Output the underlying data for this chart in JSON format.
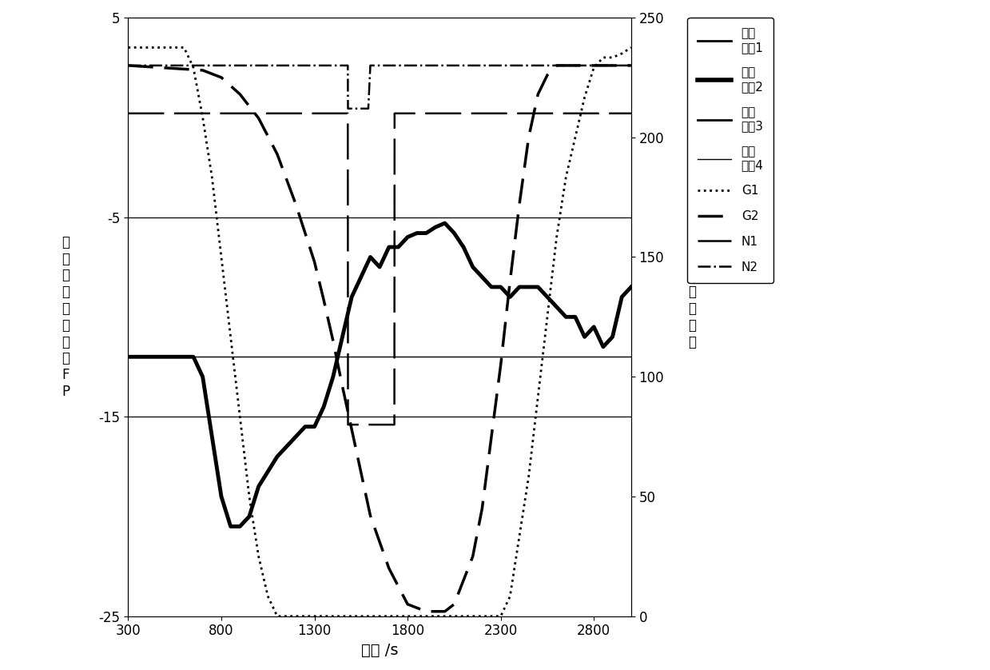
{
  "xlim": [
    300,
    3000
  ],
  "ylim_left": [
    -25,
    5
  ],
  "ylim_right": [
    0,
    250
  ],
  "xlabel": "时间 /s",
  "xticks": [
    300,
    800,
    1300,
    1800,
    2300,
    2800
  ],
  "yticks_left": [
    5,
    -5,
    -15,
    -25
  ],
  "yticks_right": [
    0,
    50,
    100,
    150,
    200,
    250
  ],
  "background_color": "#ffffff",
  "axial_dev2_t": [
    300,
    650,
    700,
    750,
    800,
    850,
    900,
    950,
    1000,
    1100,
    1200,
    1250,
    1300,
    1350,
    1400,
    1450,
    1500,
    1550,
    1600,
    1650,
    1700,
    1750,
    1800,
    1850,
    1900,
    1950,
    2000,
    2050,
    2100,
    2150,
    2200,
    2250,
    2300,
    2350,
    2400,
    2450,
    2500,
    2550,
    2600,
    2650,
    2700,
    2750,
    2800,
    2850,
    2900,
    2950,
    3000
  ],
  "axial_dev2_v": [
    -12,
    -12,
    -13,
    -16,
    -19,
    -20.5,
    -20.5,
    -20,
    -18.5,
    -17,
    -16,
    -15.5,
    -15.5,
    -14.5,
    -13,
    -11,
    -9,
    -8,
    -7,
    -7.5,
    -6.5,
    -6.5,
    -6,
    -5.8,
    -5.8,
    -5.5,
    -5.3,
    -5.8,
    -6.5,
    -7.5,
    -8,
    -8.5,
    -8.5,
    -9,
    -8.5,
    -8.5,
    -8.5,
    -9,
    -9.5,
    -10,
    -10,
    -11,
    -10.5,
    -11.5,
    -11,
    -9,
    -8.5
  ],
  "G1_t": [
    300,
    600,
    650,
    700,
    750,
    800,
    850,
    900,
    950,
    1000,
    1050,
    1100,
    1300,
    2300,
    2350,
    2400,
    2450,
    2500,
    2550,
    2600,
    2650,
    2700,
    2750,
    2800,
    2850,
    2900,
    2950,
    3000
  ],
  "G1_v": [
    3.5,
    3.5,
    2.5,
    0,
    -3,
    -7,
    -11,
    -15,
    -19,
    -22,
    -24,
    -25,
    -25,
    -25,
    -24,
    -21,
    -18,
    -14,
    -10,
    -6,
    -3,
    -1,
    1,
    2.5,
    3.0,
    3.0,
    3.2,
    3.5
  ],
  "G2_t": [
    300,
    700,
    800,
    900,
    1000,
    1100,
    1200,
    1300,
    1350,
    1400,
    1450,
    1500,
    1550,
    1600,
    1700,
    1800,
    1900,
    2000,
    2050,
    2100,
    2150,
    2200,
    2250,
    2300,
    2350,
    2400,
    2450,
    2500,
    2550,
    2600,
    3000
  ],
  "G2_v": [
    230,
    228,
    225,
    218,
    208,
    193,
    172,
    148,
    132,
    115,
    96,
    78,
    60,
    42,
    20,
    5,
    2,
    2,
    5,
    15,
    25,
    45,
    75,
    105,
    140,
    172,
    200,
    218,
    226,
    230,
    230
  ],
  "N1_t": [
    300,
    1479,
    1480,
    1729,
    1730,
    3000
  ],
  "N1_v": [
    210,
    210,
    80,
    80,
    210,
    210
  ],
  "N2_t": [
    300,
    1479,
    1480,
    1589,
    1600,
    1729,
    1730,
    3000
  ],
  "N2_v": [
    230,
    230,
    212,
    212,
    230,
    230,
    230,
    230
  ],
  "ref1_level": -12,
  "hline_m5": -5,
  "hline_m15": -15,
  "legend_entries": [
    [
      "轴向",
      "偏差1"
    ],
    [
      "轴向",
      "偏差2"
    ],
    [
      "轴向",
      "偏差3"
    ],
    [
      "轴向",
      "偏差4"
    ],
    [
      "G1",
      ""
    ],
    [
      "G2",
      ""
    ],
    [
      "N1",
      ""
    ],
    [
      "N2",
      ""
    ]
  ]
}
